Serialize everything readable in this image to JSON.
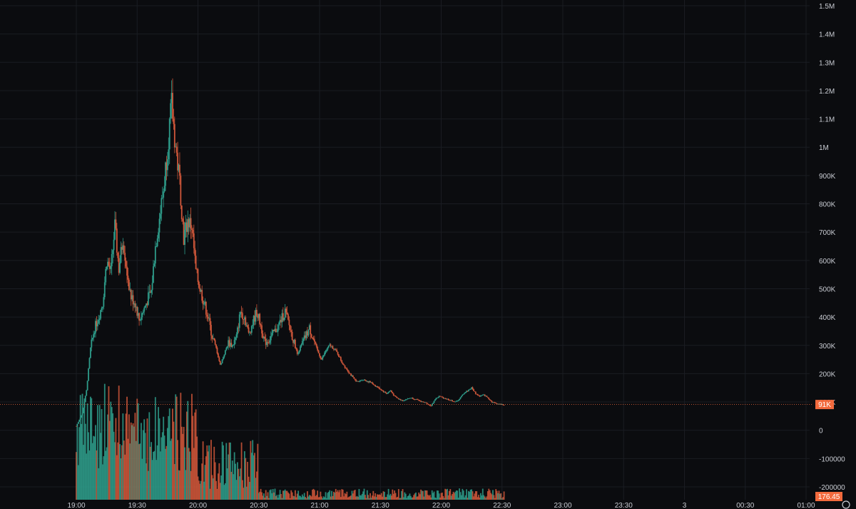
{
  "chart_data": {
    "type": "candlestick",
    "y_axis": {
      "range": [
        -200000,
        1500000
      ],
      "ticks": [
        "1.5M",
        "1.4M",
        "1.3M",
        "1.2M",
        "1.1M",
        "1M",
        "900K",
        "800K",
        "700K",
        "600K",
        "500K",
        "400K",
        "300K",
        "200K",
        "100K",
        "0",
        "-100000",
        "-200000"
      ],
      "tick_values": [
        1500000,
        1400000,
        1300000,
        1200000,
        1100000,
        1000000,
        900000,
        800000,
        700000,
        600000,
        500000,
        400000,
        300000,
        200000,
        100000,
        0,
        -100000,
        -200000
      ]
    },
    "x_axis": {
      "ticks": [
        "19:00",
        "19:30",
        "20:00",
        "20:30",
        "21:00",
        "21:30",
        "22:00",
        "22:30",
        "23:00",
        "23:30",
        "3",
        "00:30",
        "01:00"
      ],
      "tick_minutes": [
        0,
        30,
        60,
        90,
        120,
        150,
        180,
        210,
        240,
        270,
        300,
        330,
        360
      ],
      "range_minutes": [
        0,
        360
      ]
    },
    "price_path": [
      [
        0,
        15000
      ],
      [
        3,
        60000
      ],
      [
        5,
        140000
      ],
      [
        7,
        290000
      ],
      [
        9,
        360000
      ],
      [
        11,
        400000
      ],
      [
        13,
        450000
      ],
      [
        15,
        600000
      ],
      [
        17,
        560000
      ],
      [
        19,
        720000
      ],
      [
        21,
        570000
      ],
      [
        23,
        680000
      ],
      [
        25,
        560000
      ],
      [
        27,
        470000
      ],
      [
        29,
        450000
      ],
      [
        31,
        390000
      ],
      [
        33,
        420000
      ],
      [
        35,
        460000
      ],
      [
        37,
        490000
      ],
      [
        39,
        650000
      ],
      [
        41,
        750000
      ],
      [
        43,
        850000
      ],
      [
        45,
        1000000
      ],
      [
        47,
        1150000
      ],
      [
        49,
        1000000
      ],
      [
        51,
        880000
      ],
      [
        53,
        680000
      ],
      [
        55,
        740000
      ],
      [
        57,
        720000
      ],
      [
        59,
        560000
      ],
      [
        61,
        500000
      ],
      [
        63,
        450000
      ],
      [
        65,
        400000
      ],
      [
        67,
        330000
      ],
      [
        69,
        290000
      ],
      [
        71,
        230000
      ],
      [
        73,
        270000
      ],
      [
        75,
        310000
      ],
      [
        77,
        300000
      ],
      [
        79,
        330000
      ],
      [
        81,
        420000
      ],
      [
        83,
        400000
      ],
      [
        85,
        340000
      ],
      [
        87,
        380000
      ],
      [
        89,
        420000
      ],
      [
        91,
        370000
      ],
      [
        93,
        310000
      ],
      [
        95,
        320000
      ],
      [
        97,
        340000
      ],
      [
        99,
        360000
      ],
      [
        101,
        390000
      ],
      [
        103,
        420000
      ],
      [
        105,
        370000
      ],
      [
        107,
        320000
      ],
      [
        109,
        270000
      ],
      [
        111,
        300000
      ],
      [
        113,
        330000
      ],
      [
        115,
        360000
      ],
      [
        117,
        320000
      ],
      [
        119,
        280000
      ],
      [
        121,
        250000
      ],
      [
        123,
        280000
      ],
      [
        125,
        300000
      ],
      [
        127,
        290000
      ],
      [
        129,
        270000
      ],
      [
        131,
        240000
      ],
      [
        133,
        220000
      ],
      [
        135,
        200000
      ],
      [
        137,
        180000
      ],
      [
        139,
        170000
      ],
      [
        141,
        180000
      ],
      [
        143,
        175000
      ],
      [
        145,
        170000
      ],
      [
        147,
        160000
      ],
      [
        149,
        150000
      ],
      [
        151,
        140000
      ],
      [
        153,
        130000
      ],
      [
        155,
        140000
      ],
      [
        157,
        120000
      ],
      [
        159,
        110000
      ],
      [
        161,
        105000
      ],
      [
        163,
        110000
      ],
      [
        165,
        115000
      ],
      [
        167,
        110000
      ],
      [
        169,
        105000
      ],
      [
        171,
        100000
      ],
      [
        173,
        95000
      ],
      [
        175,
        85000
      ],
      [
        177,
        110000
      ],
      [
        179,
        120000
      ],
      [
        181,
        115000
      ],
      [
        183,
        110000
      ],
      [
        185,
        105000
      ],
      [
        187,
        100000
      ],
      [
        189,
        110000
      ],
      [
        191,
        130000
      ],
      [
        193,
        140000
      ],
      [
        195,
        150000
      ],
      [
        197,
        130000
      ],
      [
        199,
        120000
      ],
      [
        201,
        125000
      ],
      [
        203,
        115000
      ],
      [
        205,
        100000
      ],
      [
        207,
        95000
      ],
      [
        209,
        92000
      ],
      [
        211,
        90000
      ]
    ],
    "last_price_label": "91K",
    "last_price": 91000,
    "last_price_minute": 212,
    "volume_label": "176.45",
    "volume_max": 1
  }
}
